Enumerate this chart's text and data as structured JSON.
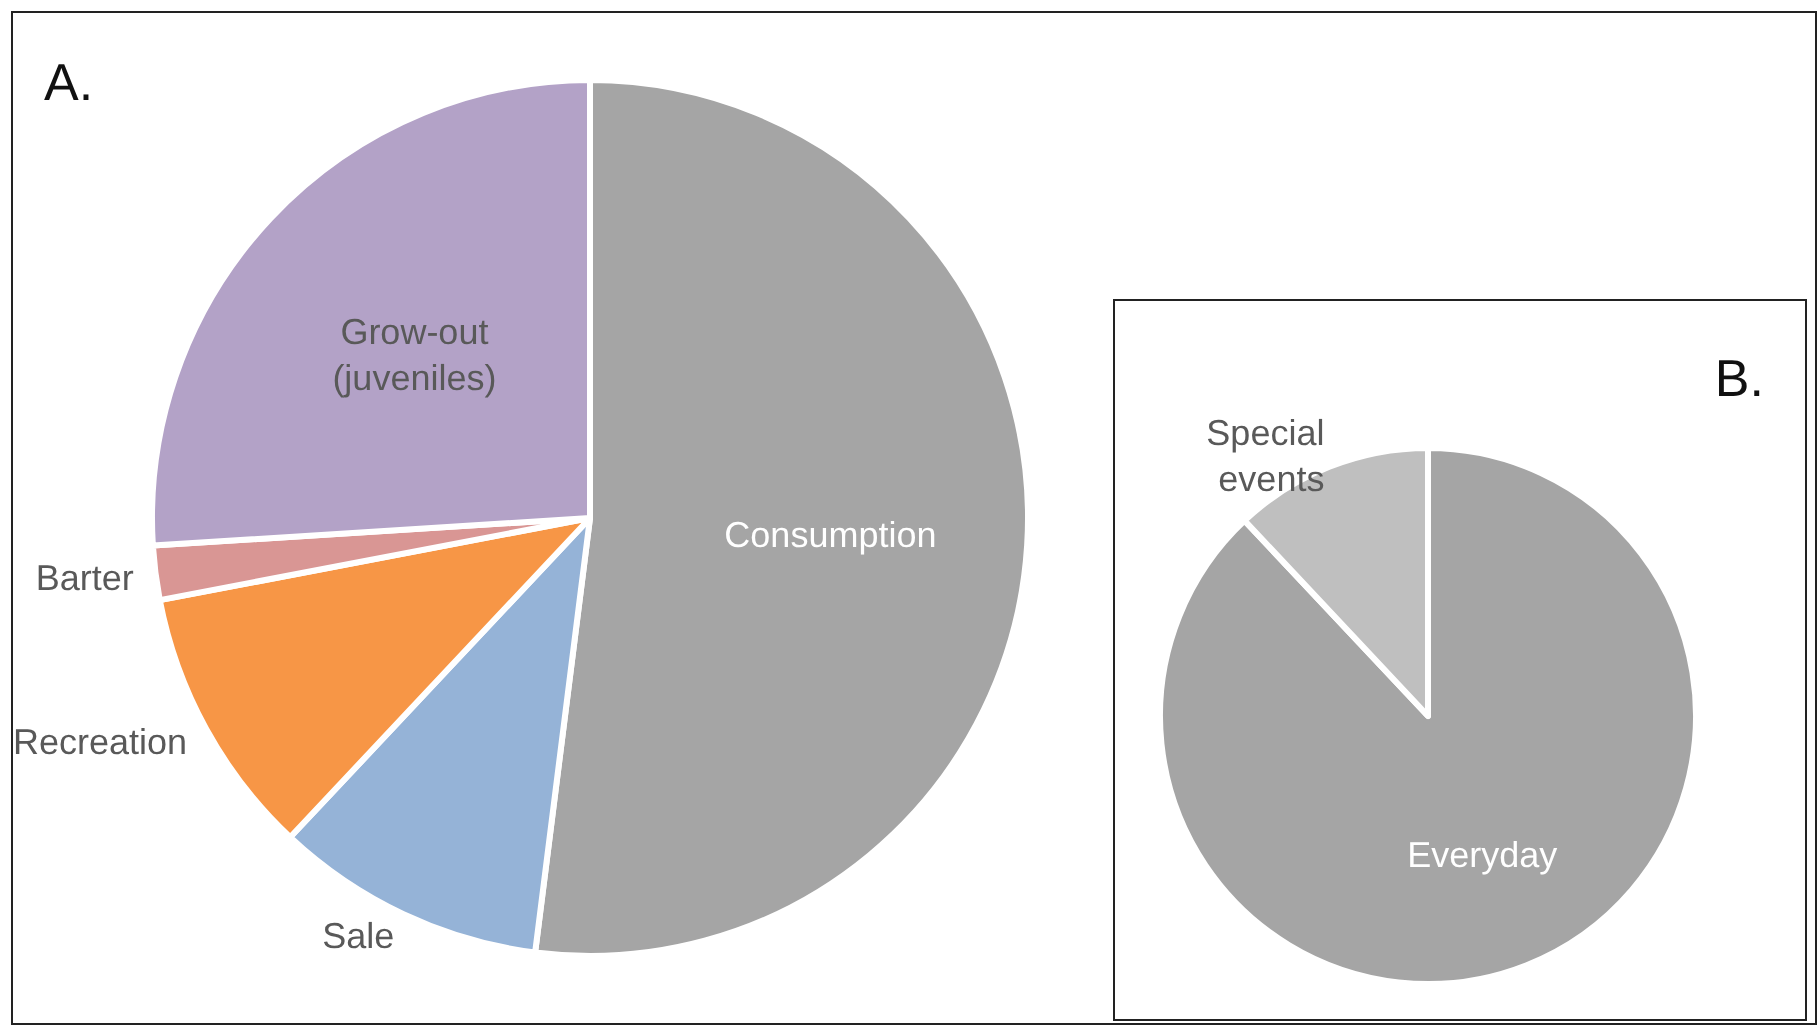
{
  "chart_data": [
    {
      "type": "pie",
      "title": "A.",
      "categories": [
        "Consumption",
        "Sale",
        "Recreation",
        "Barter",
        "Grow-out (juveniles)"
      ],
      "values": [
        52,
        10,
        10,
        2,
        26
      ],
      "colors": [
        "#a5a5a5",
        "#95b3d7",
        "#f79646",
        "#d99694",
        "#b3a2c7"
      ]
    },
    {
      "type": "pie",
      "title": "B.",
      "categories": [
        "Everyday",
        "Special events"
      ],
      "values": [
        88,
        12
      ],
      "colors": [
        "#a5a5a5",
        "#bfbfbf"
      ]
    }
  ]
}
